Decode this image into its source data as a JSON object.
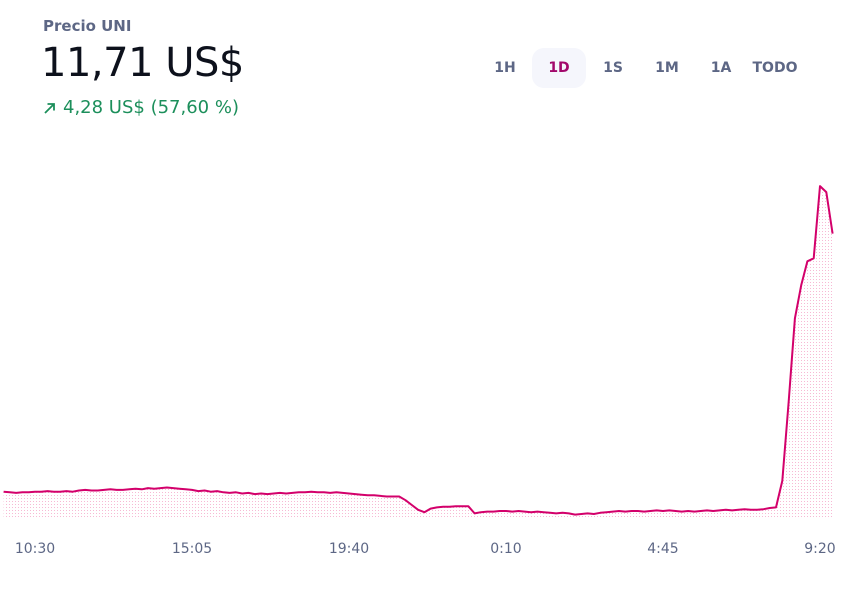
{
  "header": {
    "title": "Precio UNI",
    "price": "11,71 US$",
    "change": "4,28 US$ (57,60 %)",
    "ranges": [
      "1H",
      "1D",
      "1S",
      "1M",
      "1A",
      "TODO"
    ],
    "selected": 1
  },
  "chart_data": {
    "type": "area",
    "color": "#d3006b",
    "ylim": [
      7.0,
      12.8
    ],
    "categories": [
      null,
      null,
      null,
      null,
      null,
      "10:30",
      null,
      null,
      null,
      null,
      null,
      null,
      null,
      null,
      null,
      null,
      null,
      null,
      null,
      null,
      null,
      null,
      null,
      null,
      null,
      null,
      null,
      null,
      null,
      null,
      "15:05",
      null,
      null,
      null,
      null,
      null,
      null,
      null,
      null,
      null,
      null,
      null,
      null,
      null,
      null,
      null,
      null,
      null,
      null,
      null,
      null,
      null,
      null,
      null,
      null,
      "19:40",
      null,
      null,
      null,
      null,
      null,
      null,
      null,
      null,
      null,
      null,
      null,
      null,
      null,
      null,
      null,
      null,
      null,
      null,
      null,
      null,
      null,
      null,
      null,
      null,
      "0:10",
      null,
      null,
      null,
      null,
      null,
      null,
      null,
      null,
      null,
      null,
      null,
      null,
      null,
      null,
      null,
      null,
      null,
      null,
      null,
      null,
      null,
      null,
      null,
      null,
      "4:45",
      null,
      null,
      null,
      null,
      null,
      null,
      null,
      null,
      null,
      null,
      null,
      null,
      null,
      null,
      null,
      null,
      null,
      null,
      null,
      null,
      null,
      null,
      null,
      null,
      "9:20",
      null,
      null
    ],
    "values": [
      7.42,
      7.41,
      7.4,
      7.41,
      7.41,
      7.42,
      7.42,
      7.43,
      7.42,
      7.42,
      7.43,
      7.42,
      7.44,
      7.45,
      7.44,
      7.44,
      7.45,
      7.46,
      7.45,
      7.45,
      7.46,
      7.47,
      7.46,
      7.48,
      7.47,
      7.48,
      7.49,
      7.48,
      7.47,
      7.46,
      7.45,
      7.43,
      7.44,
      7.42,
      7.43,
      7.41,
      7.4,
      7.41,
      7.39,
      7.4,
      7.38,
      7.39,
      7.38,
      7.39,
      7.4,
      7.39,
      7.4,
      7.41,
      7.41,
      7.42,
      7.41,
      7.41,
      7.4,
      7.41,
      7.4,
      7.39,
      7.38,
      7.37,
      7.36,
      7.36,
      7.35,
      7.34,
      7.34,
      7.34,
      7.28,
      7.2,
      7.12,
      7.08,
      7.14,
      7.16,
      7.17,
      7.17,
      7.18,
      7.18,
      7.18,
      7.06,
      7.08,
      7.09,
      7.09,
      7.1,
      7.1,
      7.09,
      7.1,
      7.09,
      7.08,
      7.09,
      7.08,
      7.07,
      7.06,
      7.07,
      7.06,
      7.04,
      7.05,
      7.06,
      7.05,
      7.07,
      7.08,
      7.09,
      7.1,
      7.09,
      7.1,
      7.1,
      7.09,
      7.1,
      7.11,
      7.1,
      7.11,
      7.1,
      7.09,
      7.1,
      7.09,
      7.1,
      7.11,
      7.1,
      7.11,
      7.12,
      7.11,
      7.12,
      7.13,
      7.12,
      7.12,
      7.13,
      7.15,
      7.16,
      7.6,
      8.9,
      10.3,
      10.85,
      11.25,
      11.3,
      12.5,
      12.4,
      11.71
    ]
  }
}
